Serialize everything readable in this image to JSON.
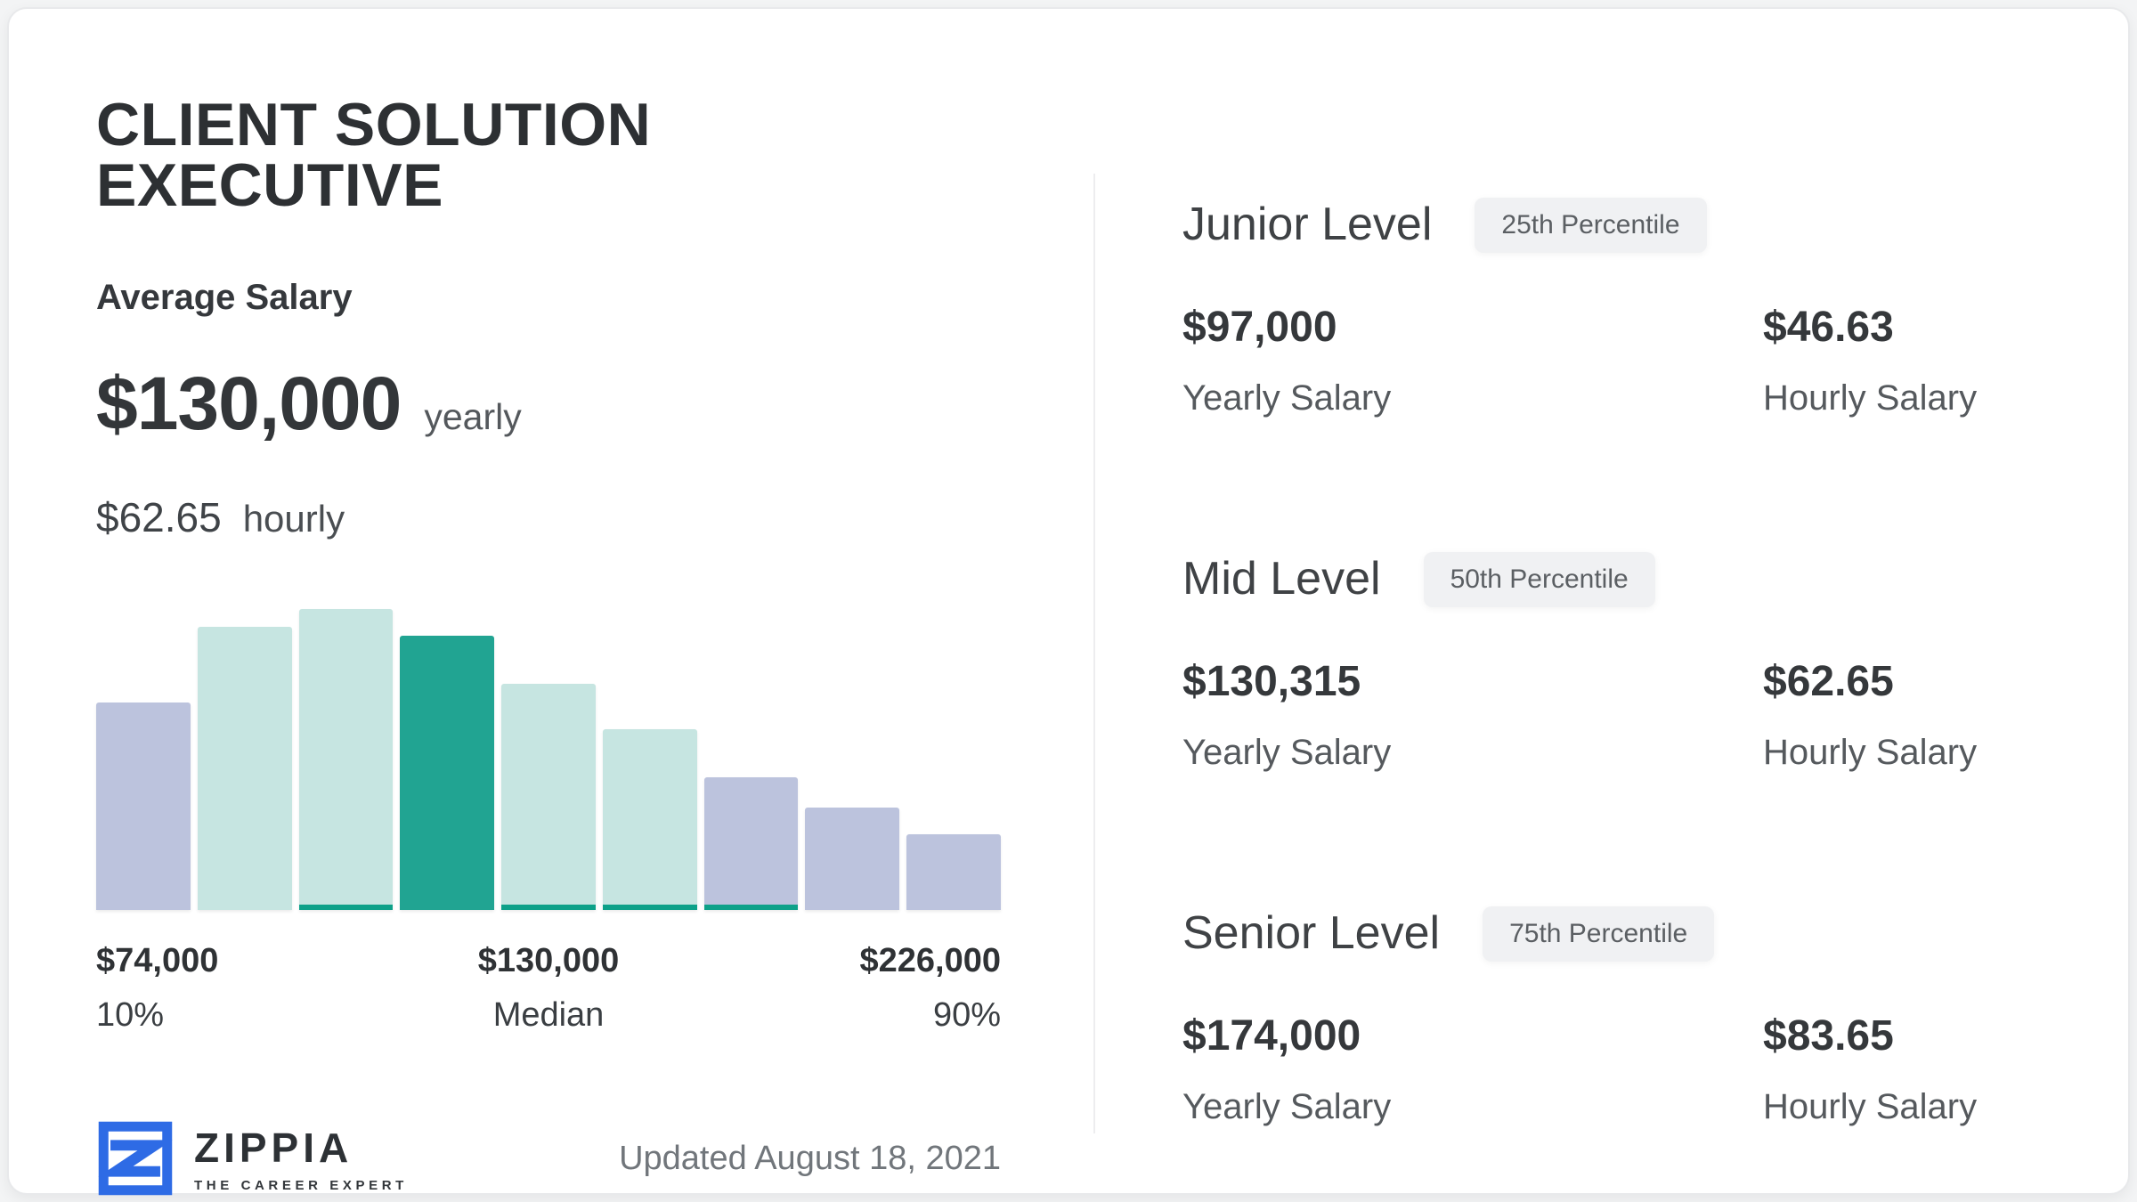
{
  "page": {
    "title": "CLIENT SOLUTION EXECUTIVE",
    "updated": "Updated August 18, 2021"
  },
  "average": {
    "label": "Average Salary",
    "yearly_value": "$130,000",
    "yearly_unit": "yearly",
    "hourly_value": "$62.65",
    "hourly_unit": "hourly"
  },
  "chart_data": {
    "type": "bar",
    "title": "Salary distribution histogram",
    "values_relative": [
      69,
      94,
      100,
      91,
      75,
      60,
      44,
      34,
      25
    ],
    "bar_colors": [
      "lavender",
      "light_teal",
      "light_teal",
      "median_teal",
      "light_teal",
      "light_teal",
      "lavender",
      "lavender",
      "lavender"
    ],
    "underline_bars": [
      2,
      4,
      5,
      6
    ],
    "x_ticks": [
      {
        "value": "$74,000",
        "label": "10%"
      },
      {
        "value": "$130,000",
        "label": "Median"
      },
      {
        "value": "$226,000",
        "label": "90%"
      }
    ],
    "xlabel": "",
    "ylabel": "",
    "grid": false,
    "legend": false
  },
  "colors": {
    "lavender": "#bcc3dd",
    "light_teal": "#c6e5e1",
    "median_teal": "#21a492",
    "strip_teal": "#0da189",
    "logo_blue": "#2e6be5"
  },
  "logo": {
    "name": "ZIPPIA",
    "tagline": "THE CAREER EXPERT"
  },
  "levels": [
    {
      "name": "Junior Level",
      "badge": "25th Percentile",
      "yearly": "$97,000",
      "yearly_label": "Yearly Salary",
      "hourly": "$46.63",
      "hourly_label": "Hourly Salary"
    },
    {
      "name": "Mid Level",
      "badge": "50th Percentile",
      "yearly": "$130,315",
      "yearly_label": "Yearly Salary",
      "hourly": "$62.65",
      "hourly_label": "Hourly Salary"
    },
    {
      "name": "Senior Level",
      "badge": "75th Percentile",
      "yearly": "$174,000",
      "yearly_label": "Yearly Salary",
      "hourly": "$83.65",
      "hourly_label": "Hourly Salary"
    }
  ]
}
